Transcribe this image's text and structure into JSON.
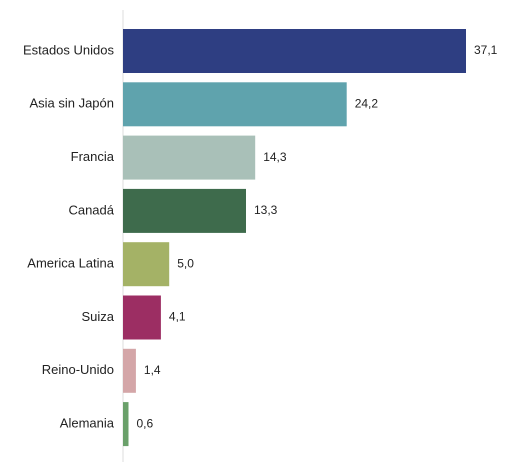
{
  "chart_data": {
    "type": "bar",
    "orientation": "horizontal",
    "title": "",
    "xlabel": "",
    "ylabel": "",
    "categories": [
      "Estados Unidos",
      "Asia sin Japón",
      "Francia",
      "Canadá",
      "America Latina",
      "Suiza",
      "Reino-Unido",
      "Alemania"
    ],
    "values": [
      37.1,
      24.2,
      14.3,
      13.3,
      5.0,
      4.1,
      1.4,
      0.6
    ],
    "value_labels": [
      "37,1",
      "24,2",
      "14,3",
      "13,3",
      "5,0",
      "4,1",
      "1,4",
      "0,6"
    ],
    "colors": [
      "#2e3e82",
      "#5fa3ad",
      "#a9c0b8",
      "#3e6b4c",
      "#a4b266",
      "#9c2e63",
      "#d4a6a8",
      "#6aa06a"
    ],
    "xlim": [
      0,
      37.1
    ],
    "grid": false,
    "legend": "none"
  }
}
